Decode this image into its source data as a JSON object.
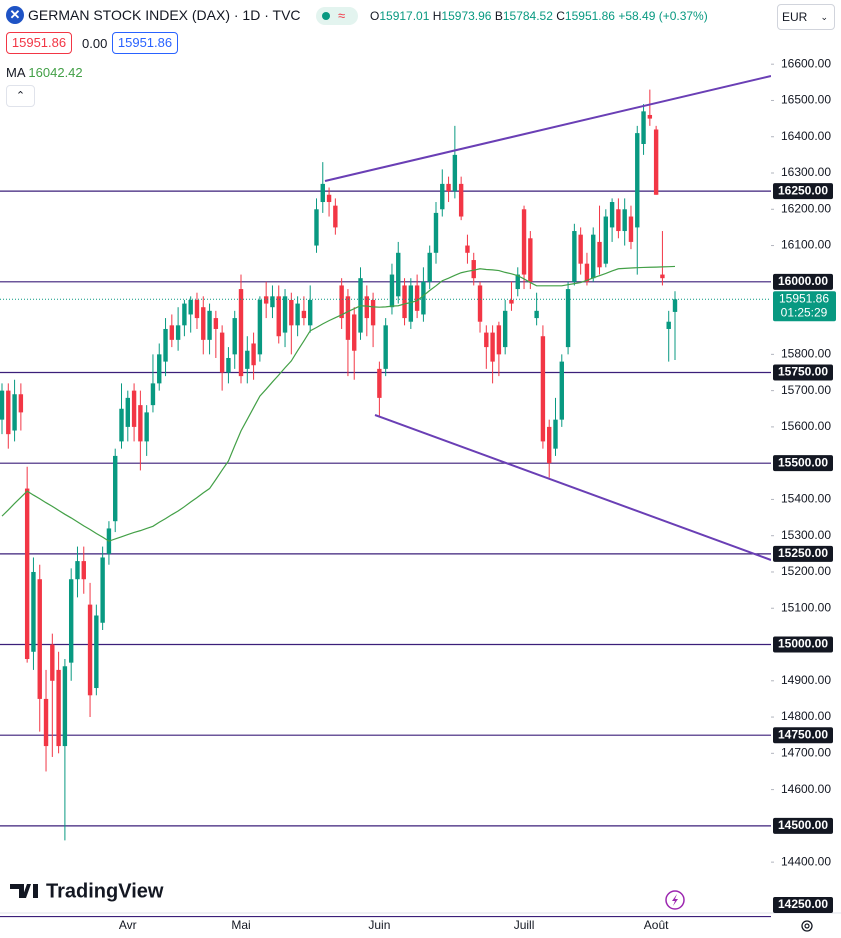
{
  "header": {
    "title": "GERMAN STOCK INDEX (DAX) · 1D · TVC",
    "ohlc_labels": [
      "O",
      "H",
      "B",
      "C"
    ],
    "change": "+58.49 (+0.37%)",
    "spread": "0.00",
    "currency": "EUR",
    "countdown": "01:25:29",
    "brand": "TradingView"
  },
  "chart_data": {
    "type": "candlestick",
    "up_color": "#089981",
    "down_color": "#f23645",
    "grid": false,
    "categories": [
      null,
      null,
      null,
      null,
      null,
      null,
      null,
      null,
      null,
      null,
      null,
      null,
      null,
      null,
      null,
      null,
      null,
      null,
      null,
      null,
      "Avr",
      null,
      null,
      null,
      null,
      null,
      null,
      null,
      null,
      null,
      null,
      null,
      null,
      null,
      null,
      null,
      null,
      null,
      "Mai",
      null,
      null,
      null,
      null,
      null,
      null,
      null,
      null,
      null,
      null,
      null,
      null,
      null,
      null,
      null,
      null,
      null,
      null,
      null,
      null,
      null,
      "Juin",
      null,
      null,
      null,
      null,
      null,
      null,
      null,
      null,
      null,
      null,
      null,
      null,
      null,
      null,
      null,
      null,
      null,
      null,
      null,
      null,
      null,
      null,
      "Juill",
      null,
      null,
      null,
      null,
      null,
      null,
      null,
      null,
      null,
      null,
      null,
      null,
      null,
      null,
      null,
      null,
      null,
      null,
      null,
      null,
      "Août",
      null,
      null,
      null
    ],
    "open": [
      15620,
      15700,
      15590,
      15690,
      15430,
      14980,
      15180,
      14850,
      15000,
      14930,
      14720,
      14950,
      15180,
      15230,
      15110,
      14880,
      15060,
      15250,
      15340,
      15560,
      15600,
      15700,
      15660,
      15560,
      15660,
      15720,
      15780,
      15880,
      15840,
      15880,
      15910,
      15950,
      15930,
      15840,
      15900,
      15860,
      15750,
      15800,
      15980,
      15760,
      15830,
      15800,
      15960,
      15930,
      15960,
      15860,
      15950,
      15880,
      15920,
      15880,
      16100,
      16220,
      16240,
      16210,
      15990,
      15960,
      15910,
      15860,
      15960,
      15950,
      15760,
      15760,
      15930,
      15960,
      15990,
      15890,
      15990,
      15910,
      16000,
      16080,
      16200,
      16270,
      16250,
      16270,
      16100,
      16060,
      15990,
      15860,
      15860,
      15880,
      15820,
      15950,
      15980,
      16200,
      16120,
      15900,
      15850,
      15600,
      15540,
      15620,
      15820,
      16000,
      16130,
      16050,
      16010,
      16110,
      16050,
      16150,
      16200,
      16140,
      16180,
      16150,
      16380,
      16460,
      16420,
      16020,
      15870,
      15917.01
    ],
    "high": [
      15720,
      15720,
      15730,
      15720,
      15490,
      15240,
      15220,
      14930,
      15030,
      14980,
      14960,
      15210,
      15270,
      15270,
      15170,
      15110,
      15270,
      15340,
      15540,
      15720,
      15700,
      15720,
      15700,
      15660,
      15800,
      15830,
      15900,
      15910,
      15930,
      15950,
      15960,
      15970,
      15960,
      15940,
      15920,
      15880,
      15820,
      15920,
      16020,
      15850,
      15860,
      15960,
      16000,
      15990,
      15990,
      15980,
      15970,
      15960,
      15960,
      15990,
      16230,
      16330,
      16260,
      16230,
      16010,
      15980,
      15930,
      16040,
      15990,
      15970,
      15780,
      15900,
      16050,
      16110,
      16010,
      16010,
      16020,
      16040,
      16100,
      16220,
      16310,
      16290,
      16430,
      16290,
      16130,
      16080,
      16000,
      15880,
      15880,
      15890,
      15950,
      16000,
      16040,
      16210,
      16140,
      15970,
      15880,
      15620,
      15680,
      15800,
      16000,
      16160,
      16150,
      16080,
      16150,
      16210,
      16200,
      16230,
      16230,
      16230,
      16210,
      16430,
      16490,
      16530,
      16430,
      16140,
      15920,
      15973.96
    ],
    "low": [
      15580,
      15540,
      15560,
      15590,
      14950,
      14930,
      14760,
      14650,
      14690,
      14700,
      14460,
      14900,
      15130,
      15140,
      14800,
      14860,
      15040,
      15220,
      15310,
      15540,
      15560,
      15560,
      15480,
      15520,
      15640,
      15700,
      15740,
      15820,
      15810,
      15850,
      15860,
      15870,
      15800,
      15800,
      15790,
      15700,
      15720,
      15760,
      15720,
      15720,
      15730,
      15780,
      15900,
      15900,
      15830,
      15820,
      15800,
      15850,
      15880,
      15860,
      16080,
      16190,
      16180,
      16130,
      15870,
      15740,
      15730,
      15840,
      15850,
      15820,
      15630,
      15740,
      15910,
      15940,
      15880,
      15870,
      15900,
      15890,
      15980,
      16050,
      16180,
      16220,
      16230,
      16170,
      16050,
      15990,
      15860,
      15760,
      15720,
      15740,
      15800,
      15920,
      15960,
      15980,
      15980,
      15880,
      15540,
      15460,
      15520,
      15600,
      15800,
      15990,
      16020,
      15990,
      16000,
      16020,
      16040,
      16110,
      16120,
      16100,
      16090,
      16020,
      16350,
      16430,
      16240,
      15990,
      15780,
      15784.52
    ],
    "close": [
      15700,
      15580,
      15690,
      15640,
      14960,
      15200,
      14850,
      14720,
      14900,
      14720,
      14940,
      15180,
      15230,
      15180,
      14860,
      15080,
      15240,
      15320,
      15520,
      15650,
      15680,
      15600,
      15560,
      15640,
      15720,
      15800,
      15870,
      15840,
      15880,
      15940,
      15950,
      15900,
      15840,
      15920,
      15870,
      15750,
      15790,
      15900,
      15740,
      15810,
      15770,
      15950,
      15940,
      15960,
      15850,
      15960,
      15880,
      15940,
      15900,
      15950,
      16200,
      16270,
      16220,
      16150,
      15900,
      15840,
      15810,
      16010,
      15900,
      15880,
      15680,
      15880,
      16020,
      16080,
      15900,
      15990,
      15920,
      16000,
      16080,
      16190,
      16270,
      16250,
      16350,
      16180,
      16080,
      16010,
      15890,
      15820,
      15780,
      15800,
      15920,
      15940,
      16020,
      16020,
      16000,
      15920,
      15560,
      15500,
      15620,
      15780,
      15980,
      16140,
      16050,
      16000,
      16130,
      16040,
      16180,
      16220,
      16140,
      16200,
      16110,
      16410,
      16470,
      16450,
      16240,
      16010,
      15890,
      15951.86
    ],
    "ma": {
      "name": "MA",
      "color": "#43a047",
      "values": [
        15354,
        15371,
        15389,
        15406,
        15423,
        15412,
        15402,
        15391,
        15381,
        15370,
        15359,
        15349,
        15338,
        15327,
        15317,
        15306,
        15296,
        15285,
        15291,
        15297,
        15303,
        15309,
        15314,
        15320,
        15326,
        15337,
        15347,
        15358,
        15368,
        15380,
        15393,
        15405,
        15418,
        15430,
        15455,
        15481,
        15506,
        15548,
        15589,
        15621,
        15653,
        15685,
        15704,
        15724,
        15743,
        15763,
        15782,
        15810,
        15837,
        15865,
        15874,
        15884,
        15893,
        15901,
        15909,
        15918,
        15926,
        15934,
        15933,
        15931,
        15930,
        15931,
        15933,
        15934,
        15939,
        15943,
        15948,
        15962,
        15976,
        15989,
        16003,
        16010,
        16018,
        16025,
        16029,
        16032,
        16036,
        16034,
        16033,
        16031,
        16026,
        16022,
        16017,
        16008,
        15998,
        15989,
        15989,
        15989,
        15989,
        15989,
        15992,
        15995,
        15998,
        16004,
        16011,
        16017,
        16023,
        16030,
        16036,
        16037,
        16038,
        16039,
        16039.6,
        16040.1,
        16040.6,
        16041.1,
        16041.7,
        16042.42
      ]
    },
    "ylim": [
      14257,
      16777
    ],
    "yticks": [
      {
        "value": 16600,
        "label": "16600.00"
      },
      {
        "value": 16500,
        "label": "16500.00"
      },
      {
        "value": 16400,
        "label": "16400.00"
      },
      {
        "value": 16300,
        "label": "16300.00"
      },
      {
        "value": 16200,
        "label": "16200.00"
      },
      {
        "value": 16100,
        "label": "16100.00"
      },
      {
        "value": 15800,
        "label": "15800.00"
      },
      {
        "value": 15700,
        "label": "15700.00"
      },
      {
        "value": 15600,
        "label": "15600.00"
      },
      {
        "value": 15400,
        "label": "15400.00"
      },
      {
        "value": 15300,
        "label": "15300.00"
      },
      {
        "value": 15200,
        "label": "15200.00"
      },
      {
        "value": 15100,
        "label": "15100.00"
      },
      {
        "value": 14900,
        "label": "14900.00"
      },
      {
        "value": 14800,
        "label": "14800.00"
      },
      {
        "value": 14700,
        "label": "14700.00"
      },
      {
        "value": 14600,
        "label": "14600.00"
      },
      {
        "value": 14400,
        "label": "14400.00"
      }
    ],
    "hlines": [
      {
        "value": 16250,
        "label": "16250.00"
      },
      {
        "value": 16000,
        "label": "16000.00"
      },
      {
        "value": 15750,
        "label": "15750.00"
      },
      {
        "value": 15500,
        "label": "15500.00"
      },
      {
        "value": 15250,
        "label": "15250.00"
      },
      {
        "value": 15000,
        "label": "15000.00"
      },
      {
        "value": 14750,
        "label": "14750.00"
      },
      {
        "value": 14500,
        "label": "14500.00"
      },
      {
        "value": 14250,
        "label": "14250.00"
      }
    ],
    "hline_color": "#3b1f7a"
  }
}
